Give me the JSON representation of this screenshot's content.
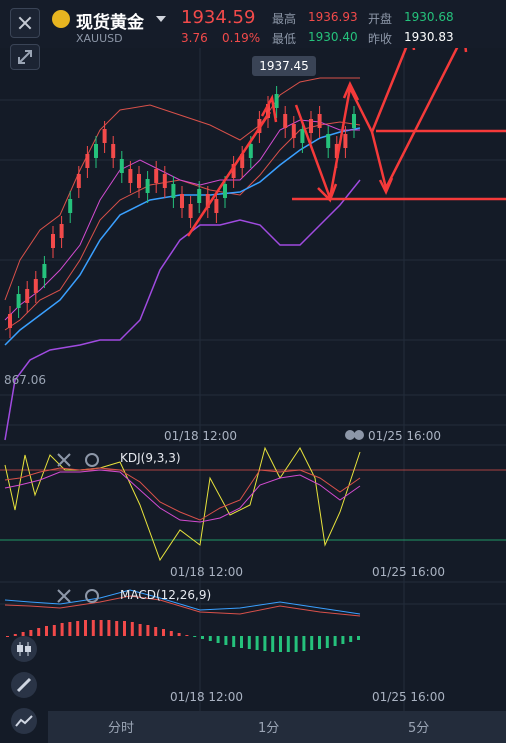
{
  "header": {
    "title": "现货黄金",
    "symbol": "XAUUSD",
    "price": "1934.59",
    "change": "3.76",
    "change_pct": "0.19%",
    "high_label": "最高",
    "high_value": "1936.93",
    "low_label": "最低",
    "low_value": "1930.40",
    "open_label": "开盘",
    "open_value": "1930.68",
    "prev_close_label": "昨收",
    "prev_close_value": "1930.83"
  },
  "main_chart": {
    "high_marker": "1937.45",
    "low_marker": "867.06",
    "time_left": "01/18 12:00",
    "time_right": "01/25 16:00"
  },
  "kdj": {
    "label": "KDJ(9,3,3)",
    "time_left": "01/18 12:00",
    "time_right": "01/25 16:00"
  },
  "macd": {
    "label": "MACD(12,26,9)",
    "time_left": "01/18 12:00",
    "time_right": "01/25 16:00"
  },
  "tabs": [
    "分时",
    "1分",
    "5分"
  ],
  "colors": {
    "up": "#f24a4a",
    "down": "#25c27c",
    "background": "#141b27",
    "accent_gold": "#e6b420"
  },
  "icons": [
    "close-icon",
    "expand-icon",
    "gold-icon",
    "chevron-down-icon",
    "settings-icon",
    "candlestick-icon",
    "pencil-icon",
    "line-icon"
  ]
}
